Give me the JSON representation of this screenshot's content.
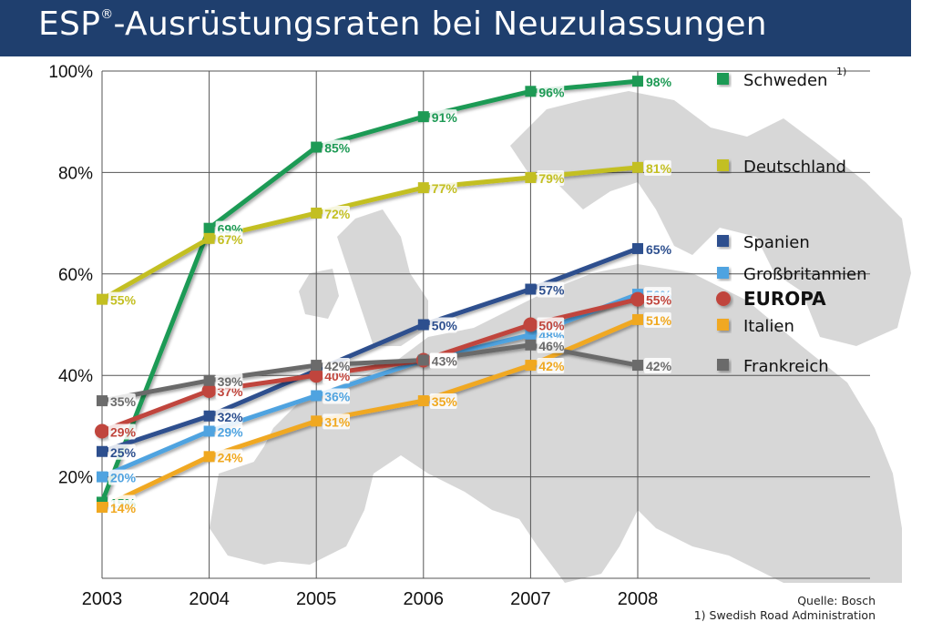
{
  "header": {
    "title_prefix": "ESP",
    "title_mark": "®",
    "title_rest": "-Ausrüstungsraten bei Neuzulassungen"
  },
  "footer": {
    "source": "Quelle: Bosch",
    "note": "1) Swedish Road Administration"
  },
  "colors": {
    "header_bg": "#1f3f6e",
    "map": "#d5d5d5",
    "grid": "#555555"
  },
  "chart_data": {
    "type": "line",
    "title": "ESP®-Ausrüstungsraten bei Neuzulassungen",
    "xlabel": "",
    "ylabel": "",
    "x": [
      "2003",
      "2004",
      "2005",
      "2006",
      "2007",
      "2008"
    ],
    "ylim": [
      0,
      100
    ],
    "y_ticks": [
      "20%",
      "40%",
      "60%",
      "80%",
      "100%"
    ],
    "grid": true,
    "legend_position": "right",
    "series": [
      {
        "name": "Schweden",
        "footnote": "1)",
        "color": "#1e9a55",
        "marker": "square",
        "values": [
          15,
          69,
          85,
          91,
          96,
          98
        ],
        "labels": [
          "15%",
          "69%",
          "85%",
          "91%",
          "96%",
          "98%"
        ]
      },
      {
        "name": "Deutschland",
        "color": "#c3bf22",
        "marker": "square",
        "values": [
          55,
          67,
          72,
          77,
          79,
          81
        ],
        "labels": [
          "55%",
          "67%",
          "72%",
          "77%",
          "79%",
          "81%"
        ]
      },
      {
        "name": "Spanien",
        "color": "#2d4f8e",
        "marker": "square",
        "values": [
          25,
          32,
          41,
          50,
          57,
          65
        ],
        "labels": [
          "25%",
          "32%",
          "41%",
          "50%",
          "57%",
          "65%"
        ]
      },
      {
        "name": "Großbritannien",
        "color": "#4fa3e0",
        "marker": "square",
        "values": [
          20,
          29,
          36,
          43,
          48,
          56
        ],
        "labels": [
          "20%",
          "29%",
          "36%",
          "43%",
          "48%",
          "56%"
        ]
      },
      {
        "name": "EUROPA",
        "color": "#c0453c",
        "marker": "circle",
        "bold": true,
        "values": [
          29,
          37,
          40,
          43,
          50,
          55
        ],
        "labels": [
          "29%",
          "37%",
          "40%",
          "43%",
          "50%",
          "55%"
        ]
      },
      {
        "name": "Italien",
        "color": "#f0a820",
        "marker": "square",
        "values": [
          14,
          24,
          31,
          35,
          42,
          51
        ],
        "labels": [
          "14%",
          "24%",
          "31%",
          "35%",
          "42%",
          "51%"
        ]
      },
      {
        "name": "Frankreich",
        "color": "#6b6b6b",
        "marker": "square",
        "values": [
          35,
          39,
          42,
          43,
          46,
          42
        ],
        "labels": [
          "35%",
          "39%",
          "42%",
          "43%",
          "46%",
          "42%"
        ]
      }
    ]
  }
}
